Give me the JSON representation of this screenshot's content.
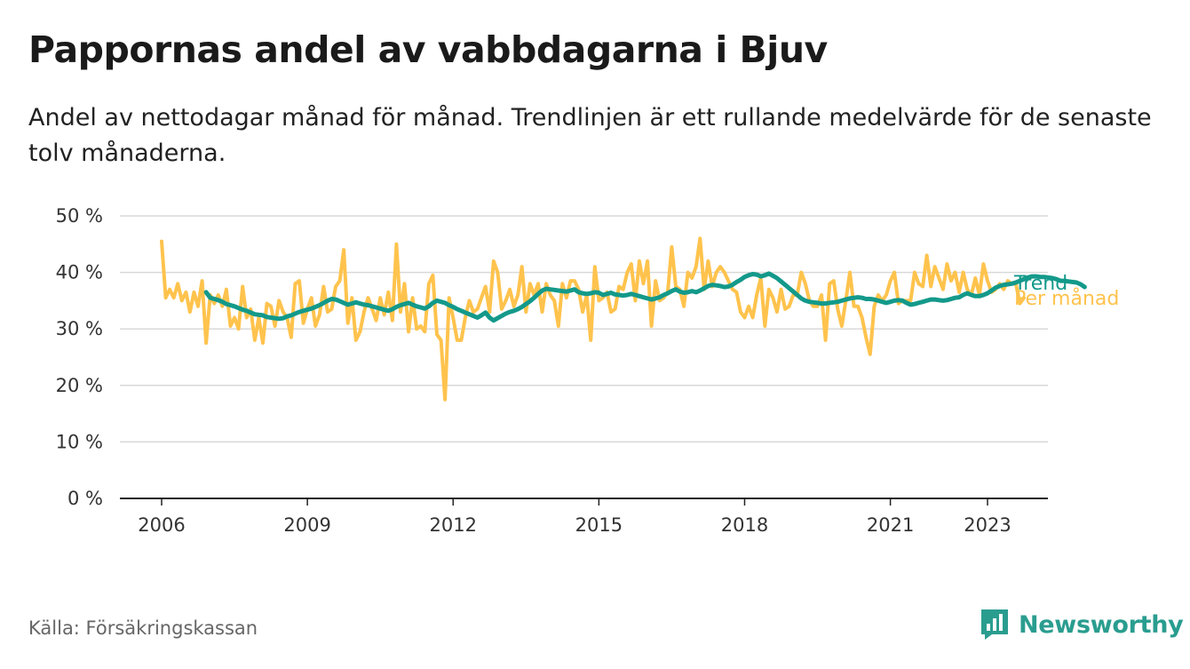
{
  "title": "Pappornas andel av vabbdagarna i Bjuv",
  "subtitle": "Andel av nettodagar månad för månad. Trendlinjen är ett rullande medelvärde för de senaste tolv månaderna.",
  "source": "Källa: Försäkringskassan",
  "brand": {
    "name": "Newsworthy",
    "icon": "newsworthy-logo-icon",
    "color": "#2a9d8f"
  },
  "chart_data": {
    "type": "line",
    "y_ticks": [
      "0 %",
      "10 %",
      "20 %",
      "30 %",
      "40 %",
      "50 %"
    ],
    "x_ticks": [
      "2006",
      "2009",
      "2012",
      "2015",
      "2018",
      "2021",
      "2023"
    ],
    "ylim": [
      0,
      50
    ],
    "xlim": [
      "2005-10",
      "2024-01"
    ],
    "grid": true,
    "series": [
      {
        "name": "Per månad",
        "color": "#ffc34d",
        "x_start": "2006-01",
        "values": [
          45.5,
          35.5,
          37,
          35.5,
          38,
          35,
          36.5,
          33,
          36.5,
          34,
          38.5,
          27.5,
          36,
          34.5,
          36,
          34,
          37,
          30.5,
          32,
          30,
          37.5,
          32,
          33.5,
          28,
          32,
          27.5,
          34.5,
          34,
          30.5,
          35,
          33,
          32,
          28.5,
          38,
          38.5,
          31,
          33.5,
          35.5,
          30.5,
          32.5,
          37.5,
          33,
          33.5,
          37.5,
          38.5,
          44,
          31,
          35.5,
          28,
          29.5,
          33,
          35.5,
          33.5,
          31.5,
          35.5,
          32.5,
          36.5,
          31.5,
          45,
          33,
          38,
          29.5,
          35.5,
          30,
          30.5,
          29.5,
          38,
          39.5,
          29,
          28,
          17.5,
          35.5,
          32,
          28,
          28,
          32,
          35,
          33,
          33.5,
          35.5,
          37.5,
          33,
          42,
          40,
          33.5,
          35,
          37,
          34,
          36,
          41,
          33,
          38,
          36,
          38,
          33,
          38,
          36,
          35,
          30.5,
          38,
          35.5,
          38.5,
          38.5,
          37,
          33,
          36,
          28,
          41,
          35,
          35.5,
          36.5,
          33,
          33.5,
          37.5,
          37,
          40,
          41.5,
          35,
          42,
          38,
          42,
          30.5,
          38.5,
          35,
          35.5,
          36.5,
          44.5,
          37.5,
          37,
          34,
          40,
          39,
          41,
          46,
          37,
          42,
          37.5,
          40,
          41,
          40,
          38.5,
          37,
          36.5,
          33,
          32,
          34,
          32,
          36,
          39,
          30.5,
          37,
          35.5,
          33,
          37,
          33.5,
          34,
          36,
          36,
          40,
          38,
          35,
          34,
          34,
          36,
          28,
          38,
          38.5,
          33.5,
          30.5,
          35,
          40,
          34,
          34,
          32,
          28.5,
          25.5,
          34,
          36,
          35,
          36,
          38.5,
          40,
          34.5,
          35,
          35,
          35,
          40,
          38,
          37.5,
          43,
          37.5,
          41,
          39,
          37,
          41.5,
          38.5,
          40,
          36.5,
          40,
          37,
          36,
          39,
          36,
          41.5,
          38.5,
          36.5,
          37,
          38,
          37,
          38.5,
          38,
          38,
          34.5,
          35.5
        ]
      },
      {
        "name": "Trend",
        "color": "#13998a",
        "x_start": "2006-12",
        "values": [
          36.5,
          35.5,
          35.3,
          35.1,
          34.8,
          34.4,
          34.2,
          34.0,
          33.7,
          33.4,
          33.2,
          32.9,
          32.6,
          32.5,
          32.4,
          32.1,
          32.0,
          31.9,
          31.8,
          31.9,
          32.2,
          32.4,
          32.7,
          33.0,
          33.2,
          33.4,
          33.6,
          33.9,
          34.2,
          34.6,
          35.0,
          35.3,
          35.2,
          34.9,
          34.6,
          34.3,
          34.5,
          34.7,
          34.5,
          34.3,
          34.2,
          34.0,
          33.8,
          33.6,
          33.4,
          33.2,
          33.5,
          33.9,
          34.2,
          34.4,
          34.6,
          34.3,
          34.0,
          33.8,
          33.6,
          34.0,
          34.6,
          35.0,
          34.8,
          34.6,
          34.2,
          33.9,
          33.5,
          33.2,
          32.9,
          32.6,
          32.3,
          32.0,
          32.4,
          32.9,
          32.0,
          31.5,
          31.9,
          32.3,
          32.7,
          33.0,
          33.2,
          33.5,
          33.9,
          34.4,
          34.9,
          35.5,
          36.2,
          36.8,
          37.1,
          37.0,
          36.9,
          36.8,
          36.7,
          36.6,
          36.8,
          37.0,
          36.5,
          36.3,
          36.2,
          36.3,
          36.5,
          36.4,
          36.0,
          36.2,
          36.4,
          36.1,
          36.0,
          35.9,
          36.0,
          36.2,
          36.0,
          35.8,
          35.6,
          35.4,
          35.2,
          35.4,
          35.6,
          36.0,
          36.3,
          36.7,
          37.0,
          36.6,
          36.4,
          36.5,
          36.7,
          36.5,
          36.8,
          37.2,
          37.6,
          37.8,
          37.7,
          37.6,
          37.4,
          37.5,
          37.8,
          38.3,
          38.7,
          39.2,
          39.5,
          39.7,
          39.6,
          39.3,
          39.5,
          39.8,
          39.4,
          39.0,
          38.4,
          37.8,
          37.2,
          36.6,
          36.0,
          35.4,
          35.0,
          34.8,
          34.7,
          34.6,
          34.5,
          34.5,
          34.6,
          34.7,
          34.8,
          35.0,
          35.2,
          35.4,
          35.5,
          35.6,
          35.5,
          35.3,
          35.3,
          35.2,
          35.0,
          34.8,
          34.6,
          34.8,
          35.0,
          35.1,
          35.0,
          34.6,
          34.3,
          34.4,
          34.6,
          34.8,
          35.0,
          35.2,
          35.2,
          35.1,
          35.0,
          35.1,
          35.3,
          35.5,
          35.6,
          36.0,
          36.3,
          36.0,
          35.8,
          35.8,
          36.0,
          36.3,
          36.8,
          37.3,
          37.6,
          37.8,
          37.9,
          38.0,
          38.2,
          38.5,
          38.8,
          39.1,
          39.3,
          39.3,
          39.2,
          39.2,
          39.1,
          39.0,
          38.8,
          38.5,
          38.5,
          38.4,
          38.3,
          38.2,
          37.9,
          37.4
        ]
      }
    ]
  }
}
